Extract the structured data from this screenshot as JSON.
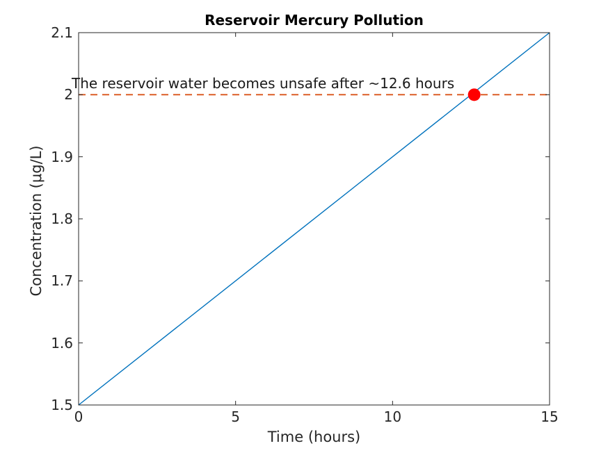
{
  "chart_data": {
    "type": "line",
    "title": "Reservoir Mercury Pollution",
    "xlabel": "Time (hours)",
    "ylabel": "Concentration (μg/L)",
    "xlim": [
      0,
      15
    ],
    "ylim": [
      1.5,
      2.1
    ],
    "grid": false,
    "legend": "none",
    "xticks": [
      {
        "value": 0,
        "label": "0"
      },
      {
        "value": 5,
        "label": "5"
      },
      {
        "value": 10,
        "label": "10"
      },
      {
        "value": 15,
        "label": "15"
      }
    ],
    "yticks": [
      {
        "value": 1.5,
        "label": "1.5"
      },
      {
        "value": 1.6,
        "label": "1.6"
      },
      {
        "value": 1.7,
        "label": "1.7"
      },
      {
        "value": 1.8,
        "label": "1.8"
      },
      {
        "value": 1.9,
        "label": "1.9"
      },
      {
        "value": 2.0,
        "label": "2"
      },
      {
        "value": 2.1,
        "label": "2.1"
      }
    ],
    "series": [
      {
        "name": "mercury-concentration",
        "style": "solid",
        "color": "#0072BD",
        "line_width": 1.4,
        "x": [
          0,
          15
        ],
        "y": [
          1.5,
          2.1
        ]
      },
      {
        "name": "unsafe-threshold",
        "style": "dashed",
        "color": "#D95319",
        "line_width": 1.8,
        "x": [
          0,
          15
        ],
        "y": [
          2.0,
          2.0
        ]
      }
    ],
    "marker": {
      "name": "crossing-point",
      "x": 12.6,
      "y": 2.0,
      "radius": 9,
      "color": "#FF0000"
    },
    "annotation": {
      "text": "The reservoir water becomes unsafe after ~12.6 hours"
    },
    "axis_color": "#262626",
    "tick_length": 6
  }
}
